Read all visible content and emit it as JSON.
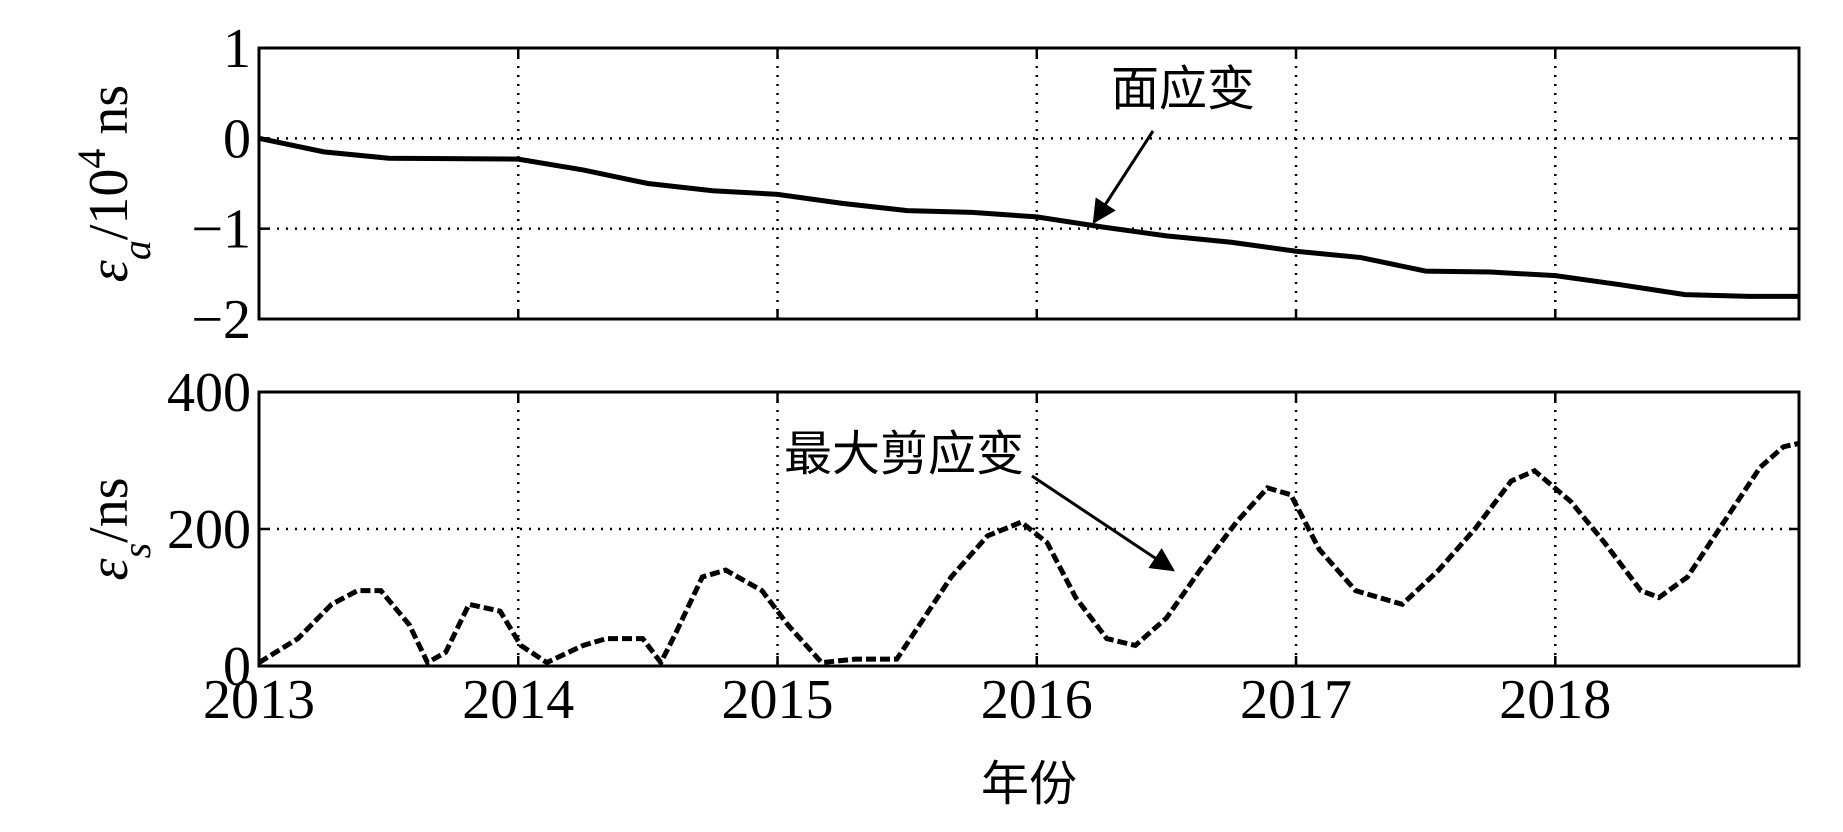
{
  "chart_data": [
    {
      "type": "line",
      "ylabel": [
        "ε",
        "a",
        "/10",
        "4",
        " ns"
      ],
      "annotation": "面应变",
      "x": [
        2013,
        2013.25,
        2013.5,
        2014,
        2014.25,
        2014.5,
        2014.75,
        2015,
        2015.25,
        2015.5,
        2015.75,
        2016,
        2016.25,
        2016.5,
        2016.75,
        2017,
        2017.25,
        2017.5,
        2017.75,
        2018,
        2018.25,
        2018.5,
        2018.75,
        2018.94
      ],
      "series": [
        {
          "color": "#000000",
          "values": [
            0,
            -0.15,
            -0.22,
            -0.23,
            -0.35,
            -0.5,
            -0.58,
            -0.62,
            -0.72,
            -0.8,
            -0.82,
            -0.87,
            -0.98,
            -1.08,
            -1.15,
            -1.25,
            -1.32,
            -1.47,
            -1.48,
            -1.52,
            -1.62,
            -1.73,
            -1.75,
            -1.75
          ]
        }
      ],
      "xlim": [
        2013,
        2018.94
      ],
      "xticks": [
        2013,
        2014,
        2015,
        2016,
        2017,
        2018
      ],
      "ylim": [
        -2,
        1
      ],
      "yticks": [
        1,
        0,
        {
          "value": -1,
          "label": "−1"
        },
        {
          "value": -2,
          "label": "−2"
        }
      ],
      "grid": true
    },
    {
      "type": "line",
      "ylabel": [
        "ε",
        "s",
        "/ns"
      ],
      "annotation": "最大剪应变",
      "xlabel": "年份",
      "x": [
        2013,
        2013.15,
        2013.28,
        2013.38,
        2013.47,
        2013.58,
        2013.65,
        2013.72,
        2013.81,
        2013.93,
        2014.01,
        2014.11,
        2014.25,
        2014.34,
        2014.48,
        2014.55,
        2014.61,
        2014.71,
        2014.8,
        2014.94,
        2015.04,
        2015.17,
        2015.3,
        2015.46,
        2015.53,
        2015.67,
        2015.81,
        2015.94,
        2016.04,
        2016.15,
        2016.27,
        2016.38,
        2016.5,
        2016.63,
        2016.77,
        2016.89,
        2016.98,
        2017.09,
        2017.23,
        2017.41,
        2017.55,
        2017.69,
        2017.83,
        2017.92,
        2018.06,
        2018.19,
        2018.33,
        2018.4,
        2018.51,
        2018.65,
        2018.79,
        2018.88,
        2018.94
      ],
      "series": [
        {
          "color": "#000000",
          "values": [
            5,
            40,
            90,
            110,
            110,
            60,
            5,
            20,
            90,
            80,
            30,
            5,
            30,
            40,
            40,
            5,
            50,
            130,
            140,
            110,
            60,
            5,
            10,
            10,
            50,
            130,
            190,
            210,
            180,
            100,
            40,
            30,
            70,
            140,
            210,
            260,
            250,
            170,
            110,
            90,
            140,
            200,
            270,
            285,
            240,
            180,
            110,
            100,
            130,
            210,
            290,
            320,
            325
          ]
        }
      ],
      "xlim": [
        2013,
        2018.94
      ],
      "xticks": [
        2013,
        2014,
        2015,
        2016,
        2017,
        2018
      ],
      "ylim": [
        0,
        400
      ],
      "yticks": [
        400,
        200,
        0
      ],
      "grid": true
    }
  ]
}
